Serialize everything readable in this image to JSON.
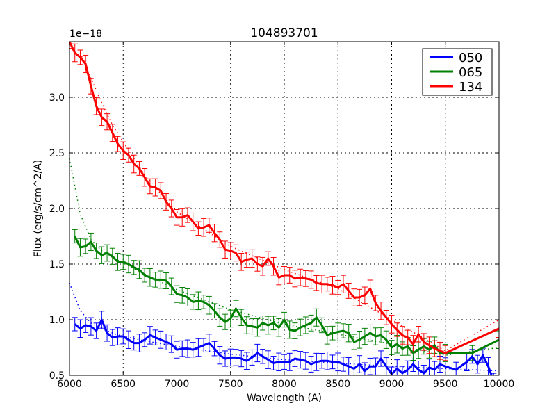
{
  "chart_data": {
    "type": "line",
    "title": "104893701",
    "xlabel": "Wavelength (A)",
    "ylabel": "Flux (erg/s/cm^2/A)",
    "y_offset_label": "1e−18",
    "xlim": [
      6000,
      10000
    ],
    "ylim": [
      0.5,
      3.5
    ],
    "xticks": [
      6000,
      6500,
      7000,
      7500,
      8000,
      8500,
      9000,
      9500,
      10000
    ],
    "xtick_labels": [
      "6000",
      "6500",
      "7000",
      "7500",
      "8000",
      "8500",
      "9000",
      "9500",
      "10000"
    ],
    "yticks": [
      0.5,
      1.0,
      1.5,
      2.0,
      2.5,
      3.0
    ],
    "ytick_labels": [
      "0.5",
      "1.0",
      "1.5",
      "2.0",
      "2.5",
      "3.0"
    ],
    "grid": true,
    "legend_position": "upper right",
    "series": [
      {
        "name": "050",
        "color": "#0000ff",
        "x": [
          6050,
          6100,
          6150,
          6200,
          6250,
          6300,
          6350,
          6400,
          6450,
          6500,
          6550,
          6600,
          6650,
          6700,
          6750,
          6800,
          6850,
          6900,
          6950,
          7000,
          7050,
          7100,
          7150,
          7200,
          7250,
          7300,
          7350,
          7400,
          7450,
          7500,
          7550,
          7600,
          7650,
          7700,
          7750,
          7800,
          7850,
          7900,
          7950,
          8000,
          8050,
          8100,
          8150,
          8200,
          8250,
          8300,
          8350,
          8400,
          8450,
          8500,
          8550,
          8600,
          8650,
          8700,
          8750,
          8800,
          8850,
          8900,
          8950,
          9000,
          9050,
          9100,
          9150,
          9200,
          9250,
          9300,
          9350,
          9400,
          9450,
          9500,
          9600,
          9700,
          9750,
          9800,
          9850,
          9900,
          9950
        ],
        "y": [
          0.96,
          0.92,
          0.95,
          0.94,
          0.9,
          1.0,
          0.88,
          0.84,
          0.85,
          0.85,
          0.82,
          0.79,
          0.79,
          0.82,
          0.86,
          0.84,
          0.82,
          0.8,
          0.78,
          0.73,
          0.74,
          0.74,
          0.73,
          0.75,
          0.77,
          0.79,
          0.74,
          0.68,
          0.65,
          0.66,
          0.66,
          0.65,
          0.63,
          0.66,
          0.7,
          0.67,
          0.64,
          0.61,
          0.62,
          0.62,
          0.62,
          0.65,
          0.64,
          0.63,
          0.6,
          0.62,
          0.63,
          0.63,
          0.62,
          0.62,
          0.6,
          0.58,
          0.56,
          0.6,
          0.54,
          0.58,
          0.58,
          0.65,
          0.58,
          0.51,
          0.56,
          0.52,
          0.55,
          0.6,
          0.55,
          0.52,
          0.57,
          0.55,
          0.6,
          0.58,
          0.55,
          0.62,
          0.67,
          0.6,
          0.68,
          0.58,
          0.45
        ],
        "fit": {
          "x": [
            6000,
            6100,
            6200,
            6300,
            6400,
            6500,
            6700,
            7000,
            7500,
            8000,
            8500,
            9000,
            9500,
            10000
          ],
          "y": [
            1.33,
            1.08,
            0.97,
            0.92,
            0.88,
            0.85,
            0.81,
            0.76,
            0.69,
            0.64,
            0.61,
            0.58,
            0.56,
            0.54
          ]
        }
      },
      {
        "name": "065",
        "color": "#008000",
        "x": [
          6050,
          6100,
          6150,
          6200,
          6250,
          6300,
          6350,
          6400,
          6450,
          6500,
          6550,
          6600,
          6650,
          6700,
          6750,
          6800,
          6850,
          6900,
          6950,
          7000,
          7050,
          7100,
          7150,
          7200,
          7250,
          7300,
          7350,
          7400,
          7450,
          7500,
          7550,
          7600,
          7650,
          7700,
          7750,
          7800,
          7850,
          7900,
          7950,
          8000,
          8050,
          8100,
          8150,
          8200,
          8250,
          8300,
          8350,
          8400,
          8450,
          8500,
          8550,
          8600,
          8650,
          8700,
          8750,
          8800,
          8850,
          8900,
          8950,
          9000,
          9050,
          9100,
          9150,
          9200,
          9250,
          9300,
          9350,
          9400,
          9450,
          9500,
          9750,
          10000
        ],
        "y": [
          1.75,
          1.65,
          1.66,
          1.7,
          1.62,
          1.58,
          1.6,
          1.57,
          1.52,
          1.52,
          1.5,
          1.47,
          1.45,
          1.4,
          1.38,
          1.36,
          1.36,
          1.35,
          1.3,
          1.23,
          1.22,
          1.2,
          1.16,
          1.17,
          1.16,
          1.13,
          1.08,
          1.02,
          0.98,
          1.01,
          1.1,
          1.02,
          0.95,
          0.94,
          0.93,
          0.97,
          0.95,
          0.97,
          0.93,
          1.0,
          0.91,
          0.9,
          0.93,
          0.95,
          0.97,
          1.02,
          0.95,
          0.86,
          0.88,
          0.89,
          0.9,
          0.88,
          0.8,
          0.82,
          0.85,
          0.88,
          0.85,
          0.86,
          0.82,
          0.75,
          0.78,
          0.74,
          0.76,
          0.7,
          0.73,
          0.76,
          0.73,
          0.77,
          0.7,
          0.7,
          0.7,
          0.82
        ],
        "fit": {
          "x": [
            6000,
            6100,
            6200,
            6300,
            6400,
            6500,
            6700,
            7000,
            7500,
            8000,
            8500,
            9000,
            9500,
            10000
          ],
          "y": [
            2.45,
            1.95,
            1.72,
            1.62,
            1.56,
            1.51,
            1.41,
            1.27,
            1.09,
            0.96,
            0.87,
            0.78,
            0.68,
            0.75
          ]
        }
      },
      {
        "name": "134",
        "color": "#ff0000",
        "x": [
          6000,
          6050,
          6100,
          6150,
          6200,
          6250,
          6300,
          6350,
          6400,
          6450,
          6500,
          6550,
          6600,
          6650,
          6700,
          6750,
          6800,
          6850,
          6900,
          6950,
          7000,
          7050,
          7100,
          7150,
          7200,
          7250,
          7300,
          7350,
          7400,
          7450,
          7500,
          7550,
          7600,
          7650,
          7700,
          7750,
          7800,
          7850,
          7900,
          7950,
          8000,
          8050,
          8100,
          8150,
          8200,
          8250,
          8300,
          8350,
          8400,
          8450,
          8500,
          8550,
          8600,
          8650,
          8700,
          8750,
          8800,
          8850,
          8900,
          8950,
          9000,
          9050,
          9100,
          9150,
          9200,
          9250,
          9300,
          9350,
          9400,
          9450,
          9500,
          10000
        ],
        "y": [
          3.5,
          3.4,
          3.36,
          3.3,
          3.1,
          2.92,
          2.82,
          2.78,
          2.68,
          2.58,
          2.52,
          2.48,
          2.4,
          2.36,
          2.28,
          2.2,
          2.19,
          2.16,
          2.06,
          2.0,
          1.92,
          1.92,
          1.94,
          1.88,
          1.82,
          1.83,
          1.85,
          1.78,
          1.72,
          1.63,
          1.62,
          1.6,
          1.52,
          1.54,
          1.55,
          1.5,
          1.48,
          1.55,
          1.48,
          1.38,
          1.4,
          1.4,
          1.37,
          1.38,
          1.37,
          1.36,
          1.33,
          1.32,
          1.32,
          1.31,
          1.29,
          1.32,
          1.26,
          1.2,
          1.2,
          1.22,
          1.28,
          1.15,
          1.08,
          1.02,
          0.96,
          0.91,
          0.86,
          0.84,
          0.78,
          0.87,
          0.8,
          0.77,
          0.74,
          0.72,
          0.7,
          0.92
        ],
        "fit": {
          "x": [
            6100,
            6200,
            6300,
            6400,
            6500,
            6700,
            7000,
            7500,
            8000,
            8500,
            9000,
            9500,
            10000
          ],
          "y": [
            3.4,
            3.17,
            2.95,
            2.75,
            2.6,
            2.3,
            1.97,
            1.66,
            1.45,
            1.28,
            1.0,
            0.72,
            1.0
          ]
        }
      }
    ]
  }
}
